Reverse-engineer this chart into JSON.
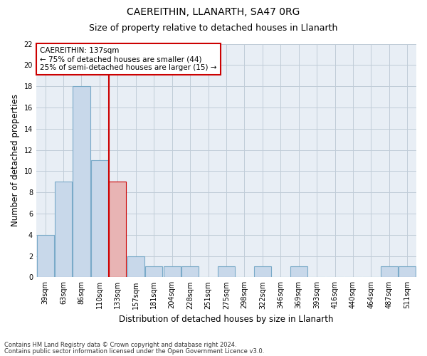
{
  "title1": "CAEREITHIN, LLANARTH, SA47 0RG",
  "title2": "Size of property relative to detached houses in Llanarth",
  "xlabel": "Distribution of detached houses by size in Llanarth",
  "ylabel": "Number of detached properties",
  "categories": [
    "39sqm",
    "63sqm",
    "86sqm",
    "110sqm",
    "133sqm",
    "157sqm",
    "181sqm",
    "204sqm",
    "228sqm",
    "251sqm",
    "275sqm",
    "298sqm",
    "322sqm",
    "346sqm",
    "369sqm",
    "393sqm",
    "416sqm",
    "440sqm",
    "464sqm",
    "487sqm",
    "511sqm"
  ],
  "values": [
    4,
    9,
    18,
    11,
    9,
    2,
    1,
    1,
    1,
    0,
    1,
    0,
    1,
    0,
    1,
    0,
    0,
    0,
    0,
    1,
    1
  ],
  "bar_color": "#c8d8ea",
  "bar_edge_color": "#7aaac8",
  "highlight_index": 4,
  "highlight_bar_color": "#e8b4b4",
  "highlight_bar_edge_color": "#cc0000",
  "vline_x": 3.5,
  "vline_color": "#cc0000",
  "annotation_text": "CAEREITHIN: 137sqm\n← 75% of detached houses are smaller (44)\n25% of semi-detached houses are larger (15) →",
  "annotation_box_color": "#ffffff",
  "annotation_box_edge": "#cc0000",
  "ylim": [
    0,
    22
  ],
  "yticks": [
    0,
    2,
    4,
    6,
    8,
    10,
    12,
    14,
    16,
    18,
    20,
    22
  ],
  "footer1": "Contains HM Land Registry data © Crown copyright and database right 2024.",
  "footer2": "Contains public sector information licensed under the Open Government Licence v3.0.",
  "bg_color": "#ffffff",
  "plot_bg_color": "#e8eef5",
  "grid_color": "#c0ccd8",
  "title1_fontsize": 10,
  "title2_fontsize": 9,
  "tick_fontsize": 7,
  "ylabel_fontsize": 8.5,
  "xlabel_fontsize": 8.5,
  "ann_fontsize": 7.5,
  "footer_fontsize": 6
}
